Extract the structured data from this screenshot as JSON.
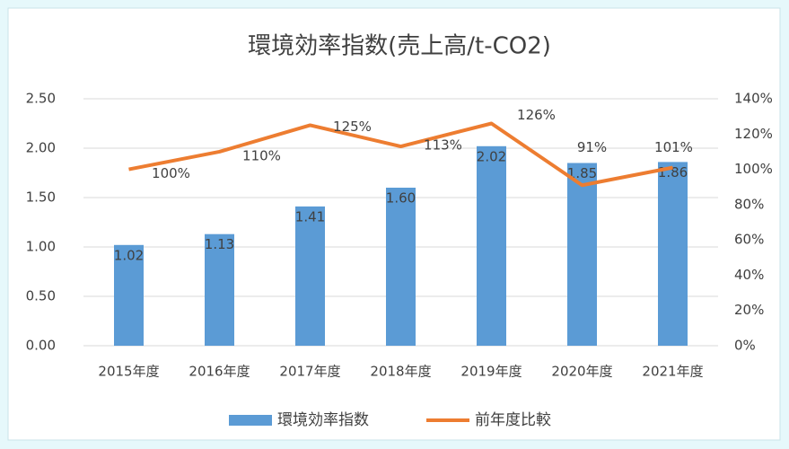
{
  "chart_data": {
    "type": "combo",
    "title": "環境効率指数(売上高/t-CO2)",
    "categories": [
      "2015年度",
      "2016年度",
      "2017年度",
      "2018年度",
      "2019年度",
      "2020年度",
      "2021年度"
    ],
    "series": [
      {
        "name": "環境効率指数",
        "type": "bar",
        "color": "#5b9bd5",
        "values": [
          1.02,
          1.13,
          1.41,
          1.6,
          2.02,
          1.85,
          1.86
        ],
        "value_labels": [
          "1.02",
          "1.13",
          "1.41",
          "1.60",
          "2.02",
          "1.85",
          "1.86"
        ]
      },
      {
        "name": "前年度比較",
        "type": "line",
        "axis": "y2",
        "color": "#ed7d31",
        "values": [
          100,
          110,
          125,
          113,
          126,
          91,
          101
        ],
        "value_labels": [
          "100%",
          "110%",
          "125%",
          "113%",
          "126%",
          "91%",
          "101%"
        ]
      }
    ],
    "ylim": [
      0,
      2.5
    ],
    "yticks": [
      {
        "value": 0,
        "label": "0.00"
      },
      {
        "value": 0.5,
        "label": "0.50"
      },
      {
        "value": 1,
        "label": "1.00"
      },
      {
        "value": 1.5,
        "label": "1.50"
      },
      {
        "value": 2,
        "label": "2.00"
      },
      {
        "value": 2.5,
        "label": "2.50"
      }
    ],
    "y2lim": [
      0,
      140
    ],
    "y2ticks": [
      {
        "value": 0,
        "label": "0%"
      },
      {
        "value": 20,
        "label": "20%"
      },
      {
        "value": 40,
        "label": "40%"
      },
      {
        "value": 60,
        "label": "60%"
      },
      {
        "value": 80,
        "label": "80%"
      },
      {
        "value": 100,
        "label": "100%"
      },
      {
        "value": 120,
        "label": "120%"
      },
      {
        "value": 140,
        "label": "140%"
      }
    ],
    "grid": true,
    "legend": "bottom"
  }
}
